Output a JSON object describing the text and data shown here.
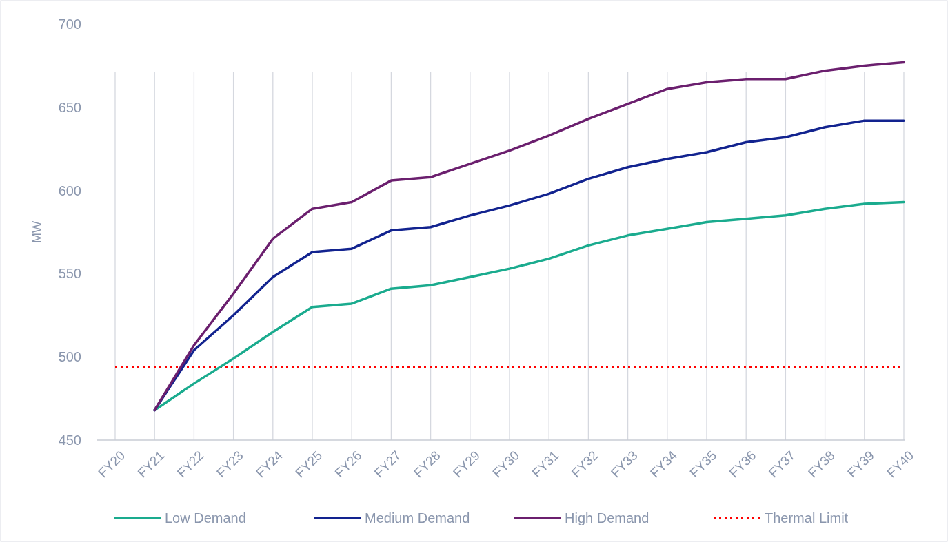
{
  "chart_data": {
    "type": "line",
    "ylabel": "MW",
    "categories": [
      "FY20",
      "FY21",
      "FY22",
      "FY23",
      "FY24",
      "FY25",
      "FY26",
      "FY27",
      "FY28",
      "FY29",
      "FY30",
      "FY31",
      "FY32",
      "FY33",
      "FY34",
      "FY35",
      "FY36",
      "FY37",
      "FY38",
      "FY39",
      "FY40"
    ],
    "series": [
      {
        "name": "Low Demand",
        "color": "#1aab8e",
        "values": [
          null,
          468,
          484,
          499,
          515,
          530,
          532,
          541,
          543,
          548,
          553,
          559,
          567,
          573,
          577,
          581,
          583,
          585,
          589,
          592,
          593
        ]
      },
      {
        "name": "Medium Demand",
        "color": "#12238f",
        "values": [
          null,
          468,
          504,
          525,
          548,
          563,
          565,
          576,
          578,
          585,
          591,
          598,
          607,
          614,
          619,
          623,
          629,
          632,
          638,
          642,
          642
        ]
      },
      {
        "name": "High Demand",
        "color": "#6b1f6e",
        "values": [
          null,
          468,
          507,
          538,
          571,
          589,
          593,
          606,
          608,
          616,
          624,
          633,
          643,
          652,
          661,
          665,
          667,
          667,
          672,
          675,
          677
        ]
      }
    ],
    "ref_lines": [
      {
        "axis": "y",
        "value": 494,
        "label": "Thermal Limit",
        "color": "#ff0000",
        "line_style": "dotted"
      }
    ],
    "ylim": [
      450,
      700
    ],
    "yticks": [
      450,
      500,
      550,
      600,
      650,
      700
    ],
    "grid": "x",
    "legend": "bottom",
    "line_style": "solid"
  }
}
